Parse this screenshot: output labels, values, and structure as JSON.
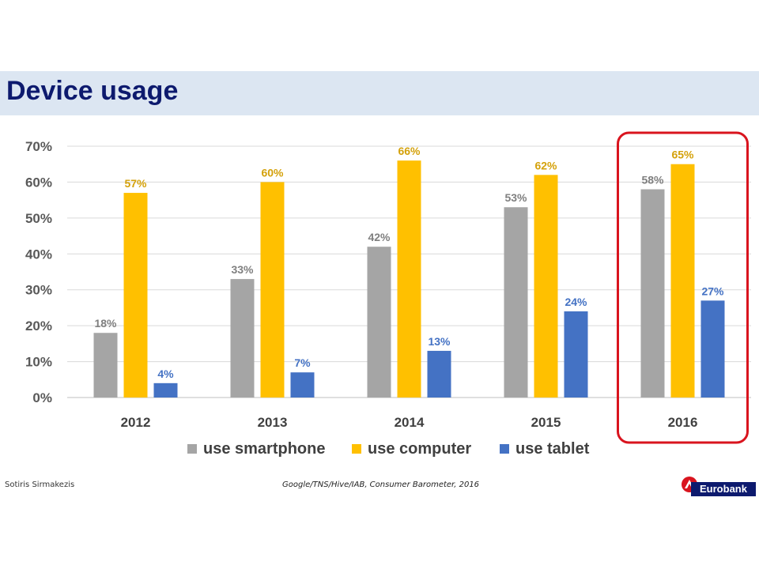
{
  "title": "Device usage",
  "author": "Sotiris Sirmakezis",
  "source": "Google/TNS/Hive/IAB, Consumer Barometer, 2016",
  "logo_text": "Eurobank",
  "colors": {
    "title": "#0d1a6e",
    "title_band": "#dce6f2",
    "highlight": "#d9141e"
  },
  "chart_data": {
    "type": "bar",
    "categories": [
      "2012",
      "2013",
      "2014",
      "2015",
      "2016"
    ],
    "series": [
      {
        "name": "use smartphone",
        "color": "#a5a5a5",
        "label_color": "#7f7f7f",
        "values": [
          18,
          33,
          42,
          53,
          58
        ]
      },
      {
        "name": "use computer",
        "color": "#ffc000",
        "label_color": "#d4a10a",
        "values": [
          57,
          60,
          66,
          62,
          65
        ]
      },
      {
        "name": "use tablet",
        "color": "#4472c4",
        "label_color": "#4472c4",
        "values": [
          4,
          7,
          13,
          24,
          27
        ]
      }
    ],
    "value_suffix": "%",
    "ylim": [
      0,
      70
    ],
    "yticks": [
      "0%",
      "10%",
      "20%",
      "30%",
      "40%",
      "50%",
      "60%",
      "70%"
    ],
    "ytick_values": [
      0,
      10,
      20,
      30,
      40,
      50,
      60,
      70
    ],
    "grid": true,
    "legend": "bottom",
    "highlighted_category": "2016"
  }
}
